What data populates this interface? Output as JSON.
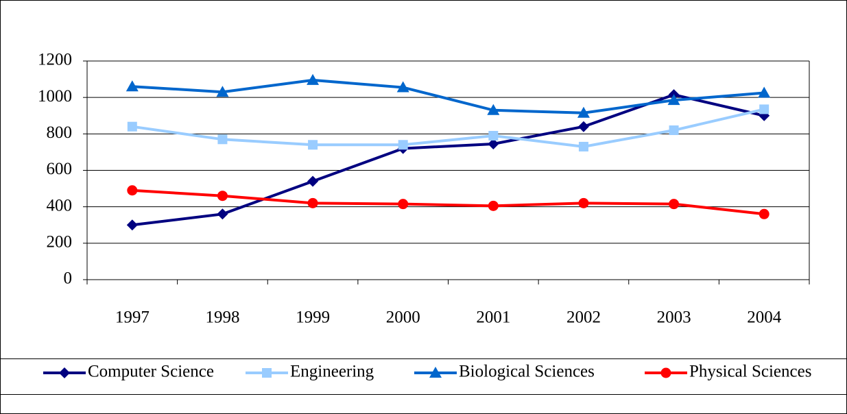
{
  "chart_data": {
    "type": "line",
    "categories": [
      "1997",
      "1998",
      "1999",
      "2000",
      "2001",
      "2002",
      "2003",
      "2004"
    ],
    "series": [
      {
        "name": "Computer Science",
        "color": "#000080",
        "marker": "diamond",
        "values": [
          300,
          360,
          540,
          720,
          745,
          840,
          1015,
          900
        ]
      },
      {
        "name": "Engineering",
        "color": "#99ccff",
        "marker": "square",
        "values": [
          840,
          770,
          740,
          740,
          790,
          730,
          820,
          935
        ]
      },
      {
        "name": "Biological Sciences",
        "color": "#0066cc",
        "marker": "triangle",
        "values": [
          1060,
          1030,
          1095,
          1055,
          930,
          915,
          985,
          1025
        ]
      },
      {
        "name": "Physical Sciences",
        "color": "#ff0000",
        "marker": "circle",
        "values": [
          490,
          460,
          420,
          415,
          405,
          420,
          415,
          360
        ]
      }
    ],
    "ylim": [
      0,
      1200
    ],
    "yticks": [
      0,
      200,
      400,
      600,
      800,
      1000,
      1200
    ],
    "grid": true,
    "legend": "bottom"
  }
}
